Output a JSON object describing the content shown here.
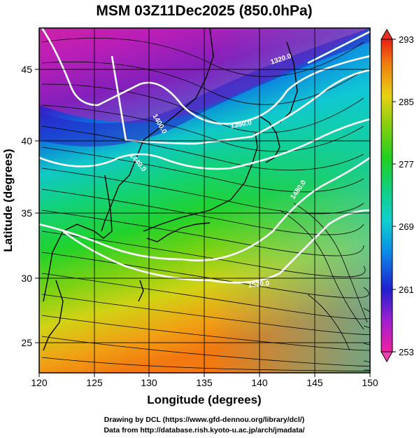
{
  "title": "MSM 03Z11Dec2025 (850.0hPa)",
  "x_axis": {
    "label": "Longitude (degrees)",
    "min": 120,
    "max": 150,
    "ticks": [
      "120",
      "125",
      "130",
      "135",
      "140",
      "145",
      "150"
    ]
  },
  "y_axis": {
    "label": "Latitude  (degrees)",
    "min": 22.4,
    "max": 47.6,
    "ticks": [
      "25",
      "30",
      "35",
      "40",
      "45"
    ]
  },
  "colorbar": {
    "min": 253,
    "max": 293,
    "labels": [
      "253",
      "261",
      "269",
      "277",
      "285",
      "293"
    ]
  },
  "contours": [
    {
      "value": 1320,
      "label": "1320.0"
    },
    {
      "value": 1360,
      "label": "1360.0"
    },
    {
      "value": 1400,
      "label": "1400.0"
    },
    {
      "value": 1440,
      "label": "1440.0"
    },
    {
      "value": 1480,
      "label": "1480.0"
    },
    {
      "value": 1520,
      "label": "1520.0"
    }
  ],
  "credits": {
    "line1": "Drawing by DCL (https://www.gfd-dennou.org/library/dcl/)",
    "line2": "Data from http://database.rish.kyoto-u.ac.jp/arch/jmadata/"
  }
}
